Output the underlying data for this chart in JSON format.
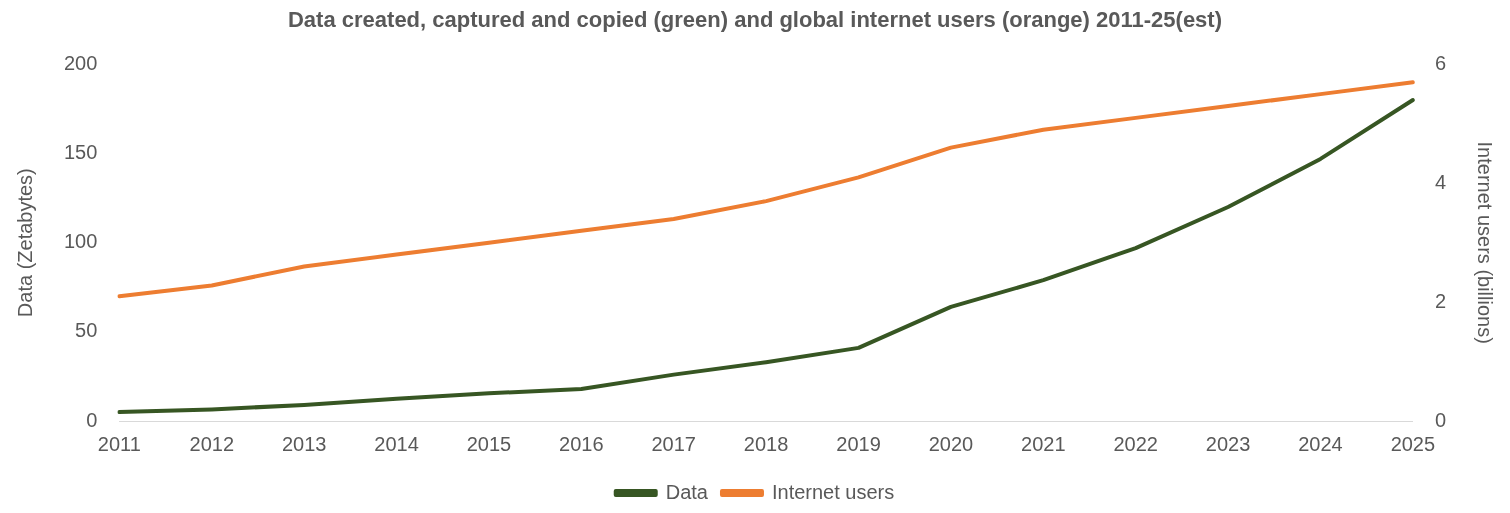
{
  "chart_data": {
    "type": "line",
    "title": "Data created, captured and copied (green) and global internet users (orange) 2011-25(est)",
    "categories": [
      "2011",
      "2012",
      "2013",
      "2014",
      "2015",
      "2016",
      "2017",
      "2018",
      "2019",
      "2020",
      "2021",
      "2022",
      "2023",
      "2024",
      "2025"
    ],
    "ylabel": "Data (Zetabytes)",
    "y2label": "Internet users (billions)",
    "series": [
      {
        "name": "Data",
        "color": "#375623",
        "values": [
          5,
          6.5,
          9,
          12.5,
          15.5,
          18,
          26,
          33,
          41,
          64,
          79,
          97,
          120,
          147,
          180
        ]
      },
      {
        "name": "Internet users",
        "color": "#ed7d31",
        "axis": "y2",
        "values": [
          2.1,
          2.28,
          2.6,
          2.8,
          3.0,
          3.2,
          3.4,
          3.7,
          4.1,
          4.6,
          4.9,
          5.1,
          5.3,
          5.5,
          5.7
        ]
      }
    ],
    "ylim": [
      0,
      200
    ],
    "yticks": [
      0,
      50,
      100,
      150,
      200
    ],
    "y2lim": [
      0,
      6
    ],
    "y2ticks": [
      0,
      2,
      4,
      6
    ],
    "grid": false,
    "legend": "bottom",
    "marker": "none",
    "line_style": "solid"
  }
}
